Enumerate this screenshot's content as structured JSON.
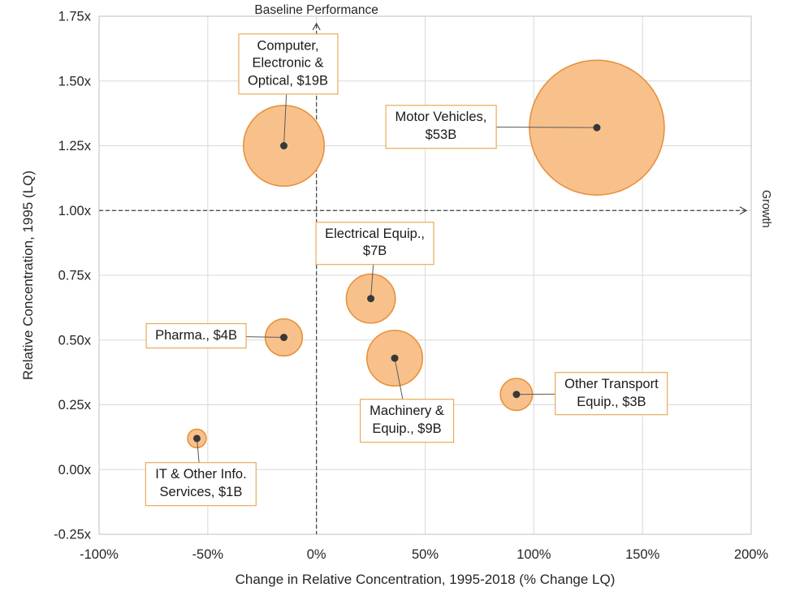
{
  "figure": {
    "note_top": "Baseline Performance",
    "note_right": "Growth"
  },
  "chart_data": {
    "type": "scatter",
    "subtype": "bubble",
    "title": "",
    "xlabel": "Change in Relative Concentration, 1995-2018 (% Change LQ)",
    "ylabel": "Relative Concentration, 1995 (LQ)",
    "xlim": [
      -100,
      200
    ],
    "ylim": [
      -0.25,
      1.75
    ],
    "x_ticks": [
      -100,
      -50,
      0,
      50,
      100,
      150,
      200
    ],
    "x_tick_labels": [
      "-100%",
      "-50%",
      "0%",
      "50%",
      "100%",
      "150%",
      "200%"
    ],
    "y_ticks": [
      -0.25,
      0,
      0.25,
      0.5,
      0.75,
      1,
      1.25,
      1.5,
      1.75
    ],
    "y_tick_labels": [
      "-0.25x",
      "0.00x",
      "0.25x",
      "0.50x",
      "0.75x",
      "1.00x",
      "1.25x",
      "1.50x",
      "1.75x"
    ],
    "grid": true,
    "legend": "none",
    "bubble_size_encoding": "area proportional to value in $B",
    "reference_lines": {
      "vertical": {
        "x": 0,
        "label": "Baseline Performance"
      },
      "horizontal": {
        "y": 1.0,
        "label": "Growth"
      }
    },
    "points": [
      {
        "name": "Computer, Electronic & Optical",
        "x": -15,
        "y": 1.25,
        "value_b": 19,
        "label_lines": [
          "Computer,",
          "Electronic &",
          "Optical, $19B"
        ],
        "label_offset": [
          5,
          -101
        ]
      },
      {
        "name": "Motor Vehicles",
        "x": 129,
        "y": 1.32,
        "value_b": 53,
        "label_lines": [
          "Motor Vehicles,",
          "$53B"
        ],
        "label_offset": [
          -192,
          -1
        ]
      },
      {
        "name": "Electrical Equip.",
        "x": 25,
        "y": 0.66,
        "value_b": 7,
        "label_lines": [
          "Electrical Equip.,",
          "$7B"
        ],
        "label_offset": [
          5,
          -68
        ]
      },
      {
        "name": "Pharma.",
        "x": -15,
        "y": 0.51,
        "value_b": 4,
        "label_lines": [
          "Pharma., $4B"
        ],
        "label_offset": [
          -108,
          -2
        ]
      },
      {
        "name": "Machinery & Equip.",
        "x": 36,
        "y": 0.43,
        "value_b": 9,
        "label_lines": [
          "Machinery &",
          "Equip., $9B"
        ],
        "label_offset": [
          15,
          77
        ]
      },
      {
        "name": "Other Transport Equip.",
        "x": 92,
        "y": 0.29,
        "value_b": 3,
        "label_lines": [
          "Other Transport",
          "Equip., $3B"
        ],
        "label_offset": [
          117,
          -1
        ]
      },
      {
        "name": "IT & Other Info. Services",
        "x": -55,
        "y": 0.12,
        "value_b": 1,
        "label_lines": [
          "IT & Other Info.",
          "Services, $1B"
        ],
        "label_offset": [
          5,
          56
        ]
      }
    ],
    "colors": {
      "bubble_fill": "#F8C18C",
      "bubble_stroke": "#E8913C",
      "center_dot": "#383838",
      "label_border": "#E39A3B",
      "leader_line": "#595959",
      "grid": "#d9d9d9",
      "plot_border": "#c0c0c0",
      "axis_text": "#262626",
      "reference_line": "#404040",
      "background": "#ffffff"
    }
  }
}
